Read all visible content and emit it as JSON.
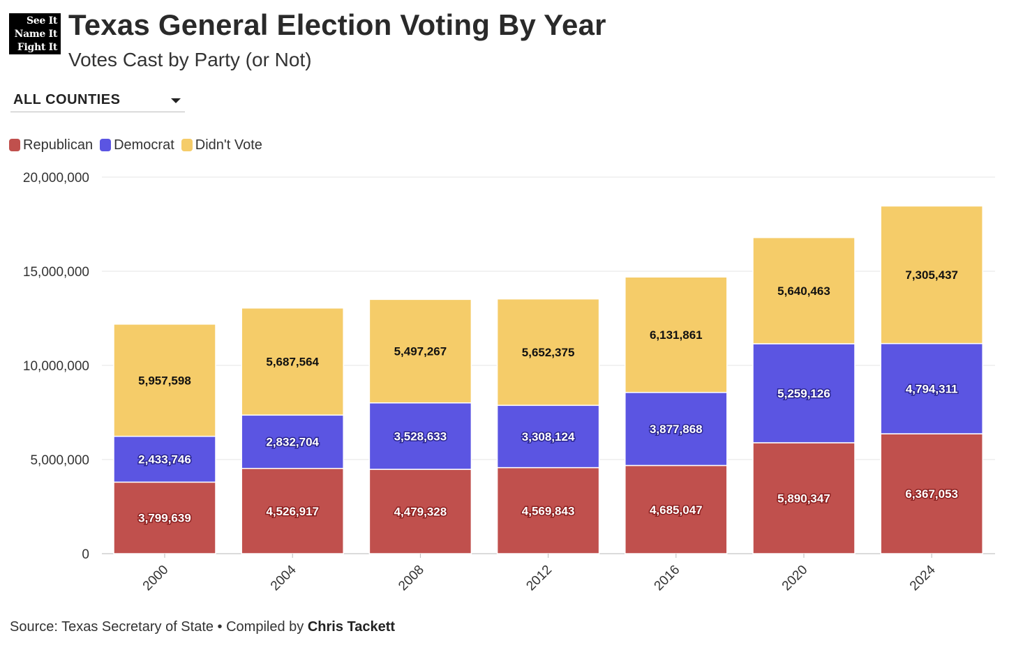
{
  "logo": {
    "line1": "See It",
    "line2": "Name It",
    "line3": "Fight It"
  },
  "header": {
    "title": "Texas General Election Voting By Year",
    "subtitle": "Votes Cast by Party (or Not)"
  },
  "filter": {
    "selected": "ALL COUNTIES",
    "icon": "chevron-down-icon"
  },
  "legend": [
    {
      "label": "Republican",
      "color": "#c0504d"
    },
    {
      "label": "Democrat",
      "color": "#5b55e2"
    },
    {
      "label": "Didn't Vote",
      "color": "#f5cc69"
    }
  ],
  "chart_data": {
    "type": "bar",
    "stacked": true,
    "categories": [
      "2000",
      "2004",
      "2008",
      "2012",
      "2016",
      "2020",
      "2024"
    ],
    "series": [
      {
        "name": "Republican",
        "color": "#c0504d",
        "values": [
          3799639,
          4526917,
          4479328,
          4569843,
          4685047,
          5890347,
          6367053
        ],
        "labels": [
          "3,799,639",
          "4,526,917",
          "4,479,328",
          "4,569,843",
          "4,685,047",
          "5,890,347",
          "6,367,053"
        ]
      },
      {
        "name": "Democrat",
        "color": "#5b55e2",
        "values": [
          2433746,
          2832704,
          3528633,
          3308124,
          3877868,
          5259126,
          4794311
        ],
        "labels": [
          "2,433,746",
          "2,832,704",
          "3,528,633",
          "3,308,124",
          "3,877,868",
          "5,259,126",
          "4,794,311"
        ]
      },
      {
        "name": "Didn't Vote",
        "color": "#f5cc69",
        "values": [
          5957598,
          5687564,
          5497267,
          5652375,
          6131861,
          5640463,
          7305437
        ],
        "labels": [
          "5,957,598",
          "5,687,564",
          "5,497,267",
          "5,652,375",
          "6,131,861",
          "5,640,463",
          "7,305,437"
        ]
      }
    ],
    "yticks": [
      0,
      5000000,
      10000000,
      15000000,
      20000000
    ],
    "ytick_labels": [
      "0",
      "5,000,000",
      "10,000,000",
      "15,000,000",
      "20,000,000"
    ],
    "ylim": [
      0,
      20000000
    ],
    "grid": true,
    "legend_position": "top-left"
  },
  "footer": {
    "source": "Source: Texas Secretary of State • Compiled by ",
    "author": "Chris Tackett"
  }
}
